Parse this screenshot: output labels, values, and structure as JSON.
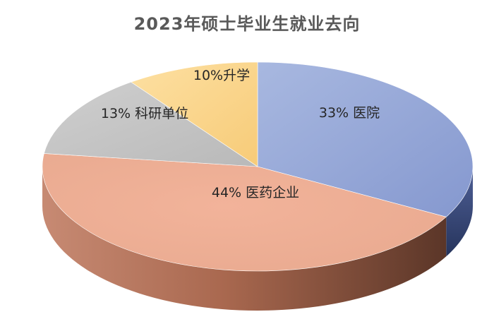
{
  "chart_data": {
    "type": "pie",
    "title": "2023年硕士毕业生就业去向",
    "slices": [
      {
        "label": "医院",
        "value": 33,
        "display": "33% 医院",
        "color": "#8fa6d8"
      },
      {
        "label": "医药企业",
        "value": 44,
        "display": "44% 医药企业",
        "color": "#f0ad8e"
      },
      {
        "label": "科研单位",
        "value": 13,
        "display": "13% 科研单位",
        "color": "#bfbfbf"
      },
      {
        "label": "升学",
        "value": 10,
        "display": "10%升学",
        "color": "#fad387"
      }
    ],
    "legend": "none",
    "style": "3d"
  }
}
